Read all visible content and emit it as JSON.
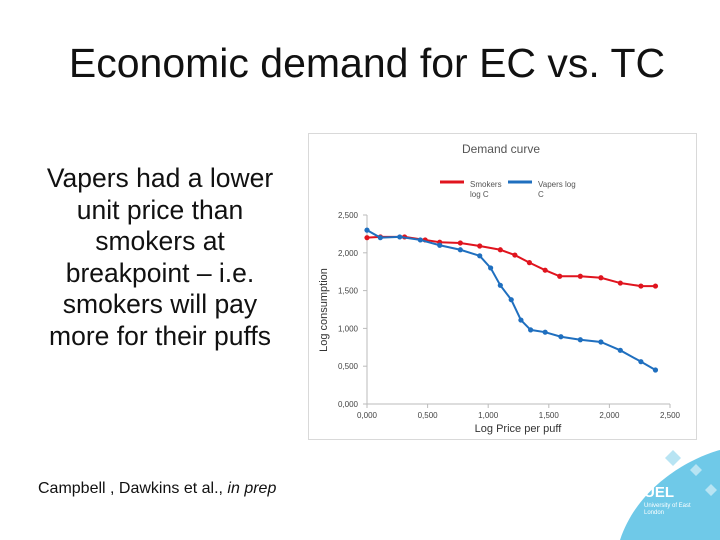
{
  "slide": {
    "title": "Economic demand for EC vs. TC",
    "text": "Vapers had a lower unit price than smokers at breakpoint – i.e. smokers will pay more for their puffs",
    "citation": "Campbell , Dawkins et al.,",
    "citation_italic": "in prep",
    "logo": "UEL",
    "logo_text": "University of East London"
  },
  "chart_data": {
    "type": "line",
    "title": "Demand curve",
    "x_label": "Log Price per puff",
    "y_label": "Log consumption",
    "xlim": [
      0,
      2.5
    ],
    "ylim": [
      0,
      2.5
    ],
    "xticks": [
      {
        "value": 0,
        "label": "0,000"
      },
      {
        "value": 0.5,
        "label": "0,500"
      },
      {
        "value": 1,
        "label": "1,000"
      },
      {
        "value": 1.5,
        "label": "1,500"
      },
      {
        "value": 2,
        "label": "2,000"
      },
      {
        "value": 2.5,
        "label": "2,500"
      }
    ],
    "yticks": [
      {
        "value": 0,
        "label": "0,000"
      },
      {
        "value": 0.5,
        "label": "0,500"
      },
      {
        "value": 1,
        "label": "1,000"
      },
      {
        "value": 1.5,
        "label": "1,500"
      },
      {
        "value": 2,
        "label": "2,000"
      },
      {
        "value": 2.5,
        "label": "2,500"
      }
    ],
    "legend": "top",
    "series": [
      {
        "name": "Smokers log C",
        "color": "#e0141e",
        "x": [
          0,
          0.11,
          0.31,
          0.48,
          0.6,
          0.77,
          0.93,
          1.1,
          1.22,
          1.34,
          1.47,
          1.59,
          1.76,
          1.93,
          2.09,
          2.26,
          2.38
        ],
        "values": [
          2.2,
          2.21,
          2.21,
          2.17,
          2.14,
          2.13,
          2.09,
          2.04,
          1.97,
          1.87,
          1.77,
          1.69,
          1.69,
          1.67,
          1.6,
          1.56,
          1.56
        ]
      },
      {
        "name": "Vapers log C",
        "color": "#1f6fbf",
        "x": [
          0,
          0.11,
          0.27,
          0.44,
          0.6,
          0.77,
          0.93,
          1.02,
          1.1,
          1.19,
          1.27,
          1.35,
          1.47,
          1.6,
          1.76,
          1.93,
          2.09,
          2.26,
          2.38
        ],
        "values": [
          2.3,
          2.2,
          2.21,
          2.17,
          2.1,
          2.04,
          1.96,
          1.8,
          1.57,
          1.38,
          1.11,
          0.98,
          0.95,
          0.89,
          0.85,
          0.82,
          0.71,
          0.56,
          0.45
        ]
      }
    ]
  }
}
